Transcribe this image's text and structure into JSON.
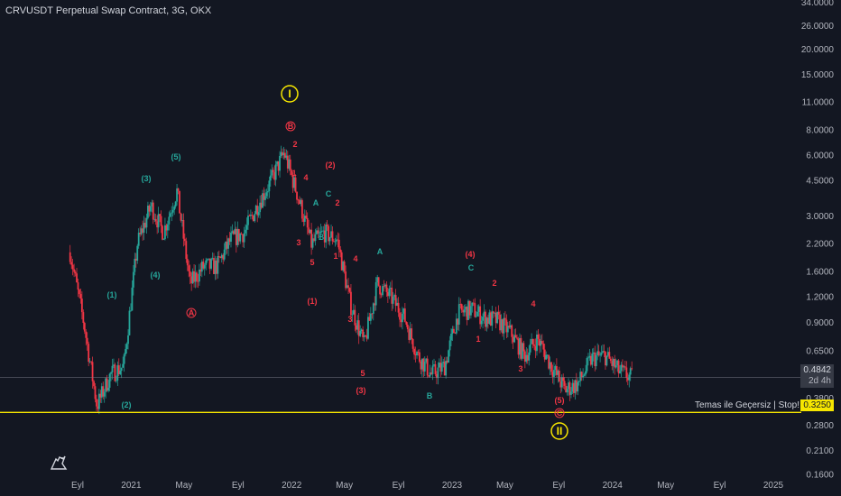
{
  "header": {
    "title": "CRVUSDT Perpetual Swap Contract, 3G, OKX"
  },
  "colors": {
    "background": "#131722",
    "up": "#26a69a",
    "down": "#f23645",
    "yellow": "#f6e600",
    "axis_text": "#b2b5be"
  },
  "price_axis": {
    "scale": "log",
    "ticks": [
      "34.0000",
      "26.0000",
      "20.0000",
      "15.0000",
      "11.0000",
      "8.0000",
      "6.0000",
      "4.5000",
      "3.0000",
      "2.2000",
      "1.6000",
      "1.2000",
      "0.9000",
      "0.6500",
      "0.3800",
      "0.2800",
      "0.2100",
      "0.1600"
    ],
    "current_price": "0.4842",
    "countdown": "2d 4h",
    "stop_price": "0.3250",
    "stop_label": "Temas ile Geçersiz | Stop!"
  },
  "time_axis": {
    "ticks": [
      "Eyl",
      "2021",
      "May",
      "Eyl",
      "2022",
      "May",
      "Eyl",
      "2023",
      "May",
      "Eyl",
      "2024",
      "May",
      "Eyl",
      "2025"
    ]
  },
  "wave_labels": {
    "green": [
      "(1)",
      "(2)",
      "(3)",
      "(4)",
      "(5)",
      "A",
      "B",
      "C",
      "A",
      "B",
      "C"
    ],
    "red": [
      "B",
      "2",
      "4",
      "1",
      "3",
      "5",
      "(2)",
      "2",
      "1",
      "(1)",
      "3",
      "4",
      "5",
      "(3)",
      "(4)",
      "2",
      "1",
      "4",
      "3",
      "(5)",
      "C",
      "A"
    ],
    "yellow": [
      "I",
      "II"
    ]
  },
  "chart_data": {
    "type": "candlestick",
    "title": "CRVUSDT Perpetual Swap Contract, 3G, OKX",
    "xlabel": "",
    "ylabel": "",
    "scale": "log",
    "ylim": [
      0.14,
      40
    ],
    "x": [
      "2020-08-15",
      "2020-09-15",
      "2020-10-15",
      "2020-11-15",
      "2020-12-15",
      "2021-01-15",
      "2021-02-15",
      "2021-03-15",
      "2021-04-15",
      "2021-05-15",
      "2021-06-15",
      "2021-07-15",
      "2021-08-15",
      "2021-09-15",
      "2021-10-15",
      "2021-11-15",
      "2021-12-15",
      "2022-01-15",
      "2022-02-15",
      "2022-03-15",
      "2022-04-15",
      "2022-05-15",
      "2022-06-15",
      "2022-07-15",
      "2022-08-15",
      "2022-09-15",
      "2022-10-15",
      "2022-11-15",
      "2022-12-15",
      "2023-01-15",
      "2023-02-15",
      "2023-03-15",
      "2023-04-15",
      "2023-05-15",
      "2023-06-15",
      "2023-07-15",
      "2023-08-15",
      "2023-09-15",
      "2023-10-15",
      "2023-11-15",
      "2023-12-15",
      "2024-01-15",
      "2024-02-15"
    ],
    "close": [
      2.0,
      0.9,
      0.35,
      0.5,
      0.55,
      2.2,
      3.4,
      2.5,
      4.0,
      1.4,
      1.7,
      1.7,
      2.3,
      2.5,
      3.4,
      4.5,
      6.2,
      3.8,
      2.2,
      2.5,
      2.3,
      1.1,
      0.7,
      1.4,
      1.2,
      0.95,
      0.62,
      0.5,
      0.55,
      1.0,
      1.05,
      0.95,
      0.92,
      0.8,
      0.62,
      0.75,
      0.55,
      0.42,
      0.45,
      0.6,
      0.62,
      0.52,
      0.48
    ],
    "series": [
      {
        "name": "CRVUSDT",
        "values": [
          2.0,
          0.9,
          0.35,
          0.5,
          0.55,
          2.2,
          3.4,
          2.5,
          4.0,
          1.4,
          1.7,
          1.7,
          2.3,
          2.5,
          3.4,
          4.5,
          6.2,
          3.8,
          2.2,
          2.5,
          2.3,
          1.1,
          0.7,
          1.4,
          1.2,
          0.95,
          0.62,
          0.5,
          0.55,
          1.0,
          1.05,
          0.95,
          0.92,
          0.8,
          0.62,
          0.75,
          0.55,
          0.42,
          0.45,
          0.6,
          0.62,
          0.52,
          0.48
        ]
      }
    ],
    "horizontal_lines": [
      {
        "value": 0.4842
      },
      {
        "value": 0.325,
        "label": "Temas ile Geçersiz | Stop!"
      }
    ],
    "grid": false
  }
}
